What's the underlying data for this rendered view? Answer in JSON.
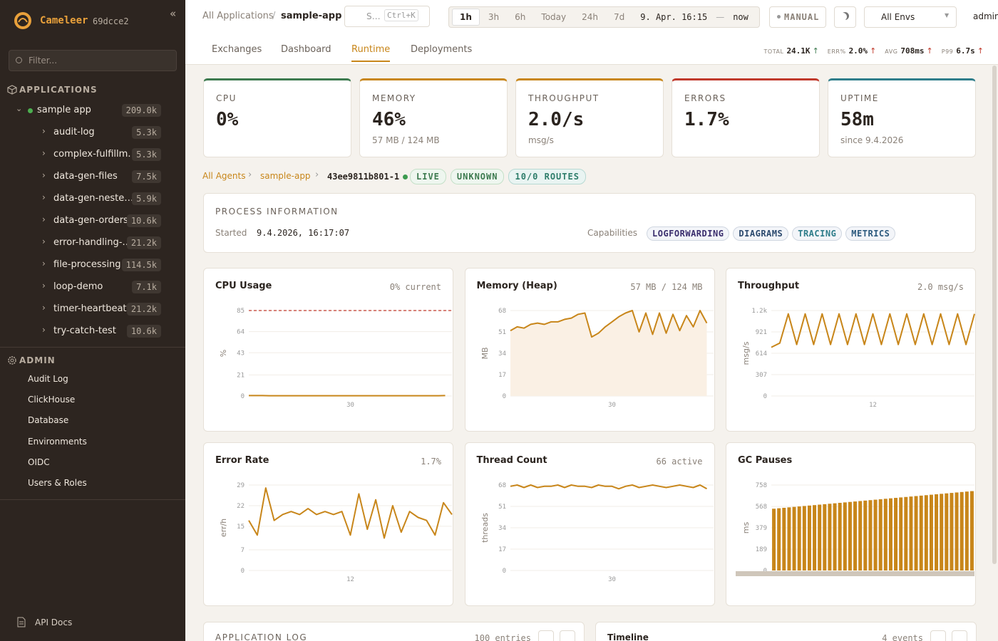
{
  "sidebar": {
    "brand": "Cameleer",
    "version": "69dcce2",
    "filter_placeholder": "Filter...",
    "applications_heading": "APPLICATIONS",
    "app": {
      "name": "sample app",
      "count": "209.0k"
    },
    "routes": [
      {
        "name": "audit-log",
        "count": "5.3k"
      },
      {
        "name": "complex-fulfillm…",
        "count": "5.3k"
      },
      {
        "name": "data-gen-files",
        "count": "7.5k"
      },
      {
        "name": "data-gen-neste…",
        "count": "5.9k"
      },
      {
        "name": "data-gen-orders",
        "count": "10.6k"
      },
      {
        "name": "error-handling-…",
        "count": "21.2k"
      },
      {
        "name": "file-processing",
        "count": "114.5k"
      },
      {
        "name": "loop-demo",
        "count": "7.1k"
      },
      {
        "name": "timer-heartbeat",
        "count": "21.2k"
      },
      {
        "name": "try-catch-test",
        "count": "10.6k"
      }
    ],
    "admin_heading": "ADMIN",
    "admin_links": [
      "Audit Log",
      "ClickHouse",
      "Database",
      "Environments",
      "OIDC",
      "Users & Roles"
    ],
    "api_docs": "API Docs"
  },
  "header": {
    "breadcrumb": [
      "All Applications",
      "sample-app"
    ],
    "search": "S…",
    "search_shortcut": "Ctrl+K",
    "time_ranges": [
      "1h",
      "3h",
      "6h",
      "Today",
      "24h",
      "7d"
    ],
    "active_range": 0,
    "from": "9. Apr. 16:15",
    "separator": "—",
    "to": "now",
    "mode": "MANUAL",
    "env": "All Envs",
    "user": "admin"
  },
  "tabs": {
    "items": [
      "Exchanges",
      "Dashboard",
      "Runtime",
      "Deployments"
    ],
    "active": 2
  },
  "stats": [
    {
      "label": "TOTAL",
      "value": "24.1K"
    },
    {
      "label": "ERR%",
      "value": "2.0%"
    },
    {
      "label": "AVG",
      "value": "708ms"
    },
    {
      "label": "P99",
      "value": "6.7s"
    }
  ],
  "kpis": [
    {
      "label": "CPU",
      "value": "0%",
      "color": "#3d7a4f"
    },
    {
      "label": "MEMORY",
      "value": "46%",
      "sub": "57 MB / 124 MB",
      "color": "#c8861a"
    },
    {
      "label": "THROUGHPUT",
      "value": "2.0/s",
      "sub": "msg/s",
      "color": "#c8861a"
    },
    {
      "label": "ERRORS",
      "value": "1.7%",
      "color": "#c0392b"
    },
    {
      "label": "UPTIME",
      "value": "58m",
      "sub": "since 9.4.2026",
      "color": "#2e7d8a"
    }
  ],
  "agent": {
    "crumbs": [
      "All Agents",
      "sample-app"
    ],
    "id": "43ee9811b801-1",
    "badges": [
      "LIVE",
      "UNKNOWN",
      "10/0 ROUTES"
    ]
  },
  "process": {
    "title": "PROCESS INFORMATION",
    "started_label": "Started",
    "started": "9.4.2026, 16:17:07",
    "capabilities_label": "Capabilities",
    "capabilities": [
      "LOGFORWARDING",
      "DIAGRAMS",
      "TRACING",
      "METRICS"
    ]
  },
  "chart_data": [
    {
      "type": "line",
      "title": "CPU Usage",
      "subtitle": "0% current",
      "ylabel": "%",
      "color": "#c8861a",
      "threshold": 85,
      "x": [
        0,
        2,
        4,
        6,
        8,
        10,
        12,
        14,
        16,
        18,
        20,
        22,
        24,
        26,
        28,
        30,
        32,
        34,
        36,
        38,
        40,
        42,
        44,
        46,
        48,
        50,
        52,
        54,
        56,
        58
      ],
      "values": [
        0.4,
        0.4,
        0.4,
        0.3,
        0.3,
        0.3,
        0.3,
        0.3,
        0.3,
        0.3,
        0.3,
        0.3,
        0.3,
        0.3,
        0.3,
        0.3,
        0.3,
        0.3,
        0.3,
        0.3,
        0.3,
        0.3,
        0.3,
        0.3,
        0.3,
        0.3,
        0.3,
        0.3,
        0.3,
        0.4
      ],
      "xlim": [
        0,
        60
      ],
      "xticks": [
        30
      ],
      "ylim": [
        0,
        85
      ],
      "yticks": [
        0,
        21,
        43,
        64,
        85
      ]
    },
    {
      "type": "area",
      "title": "Memory (Heap)",
      "subtitle": "57 MB / 124 MB",
      "ylabel": "MB",
      "color": "#c8861a",
      "x": [
        0,
        2,
        4,
        6,
        8,
        10,
        12,
        14,
        16,
        18,
        20,
        22,
        24,
        26,
        28,
        30,
        32,
        34,
        36,
        38,
        40,
        42,
        44,
        46,
        48,
        50,
        52,
        54,
        56,
        58
      ],
      "values": [
        52,
        55,
        54,
        57,
        58,
        57,
        59,
        59,
        61,
        62,
        65,
        66,
        47,
        50,
        55,
        59,
        63,
        66,
        68,
        51,
        66,
        49,
        66,
        50,
        65,
        52,
        64,
        55,
        68,
        58
      ],
      "xlim": [
        0,
        60
      ],
      "xticks": [
        30
      ],
      "ylim": [
        0,
        68
      ],
      "yticks": [
        0,
        17,
        34,
        51,
        68
      ]
    },
    {
      "type": "line",
      "title": "Throughput",
      "subtitle": "2.0 msg/s",
      "ylabel": "msg/s",
      "color": "#c8861a",
      "x": [
        0,
        1,
        2,
        3,
        4,
        5,
        6,
        7,
        8,
        9,
        10,
        11,
        12,
        13,
        14,
        15,
        16,
        17,
        18,
        19,
        20,
        21,
        22,
        23,
        24
      ],
      "values": [
        700,
        760,
        1180,
        740,
        1180,
        740,
        1180,
        740,
        1180,
        740,
        1180,
        740,
        1180,
        740,
        1180,
        740,
        1180,
        740,
        1180,
        740,
        1180,
        740,
        1180,
        740,
        1180
      ],
      "xlim": [
        0,
        24
      ],
      "xticks": [
        12
      ],
      "ylim": [
        0,
        1228
      ],
      "yticks": [
        0,
        307,
        614,
        921,
        {
          "value": 1228,
          "label": "1.2k"
        }
      ]
    },
    {
      "type": "line",
      "title": "Error Rate",
      "subtitle": "1.7%",
      "ylabel": "err/h",
      "color": "#c8861a",
      "x": [
        0,
        1,
        2,
        3,
        4,
        5,
        6,
        7,
        8,
        9,
        10,
        11,
        12,
        13,
        14,
        15,
        16,
        17,
        18,
        19,
        20,
        21,
        22,
        23,
        24
      ],
      "values": [
        17,
        12,
        28,
        17,
        19,
        20,
        19,
        21,
        19,
        20,
        19,
        20,
        12,
        26,
        14,
        24,
        11,
        22,
        13,
        20,
        18,
        17,
        12,
        23,
        19
      ],
      "xlim": [
        0,
        24
      ],
      "xticks": [
        12
      ],
      "ylim": [
        0,
        29
      ],
      "yticks": [
        0,
        7,
        15,
        22,
        29
      ]
    },
    {
      "type": "line",
      "title": "Thread Count",
      "subtitle": "66 active",
      "ylabel": "threads",
      "color": "#c8861a",
      "x": [
        0,
        2,
        4,
        6,
        8,
        10,
        12,
        14,
        16,
        18,
        20,
        22,
        24,
        26,
        28,
        30,
        32,
        34,
        36,
        38,
        40,
        42,
        44,
        46,
        48,
        50,
        52,
        54,
        56,
        58
      ],
      "values": [
        67,
        68,
        66,
        68,
        66,
        67,
        67,
        68,
        66,
        68,
        67,
        67,
        66,
        68,
        67,
        67,
        65,
        67,
        68,
        66,
        67,
        68,
        67,
        66,
        67,
        68,
        67,
        66,
        68,
        65
      ],
      "xlim": [
        0,
        60
      ],
      "xticks": [
        30
      ],
      "ylim": [
        0,
        68
      ],
      "yticks": [
        0,
        17,
        34,
        51,
        68
      ]
    },
    {
      "type": "bar",
      "title": "GC Pauses",
      "ylabel": "ms",
      "color": "#c8861a",
      "values": [
        548,
        552,
        556,
        560,
        564,
        568,
        572,
        576,
        580,
        584,
        588,
        592,
        596,
        600,
        604,
        608,
        612,
        616,
        620,
        624,
        628,
        632,
        636,
        640,
        644,
        648,
        652,
        656,
        660,
        664,
        668,
        672,
        676,
        680,
        684,
        688,
        692,
        696,
        700,
        704
      ],
      "ylim": [
        0,
        758
      ],
      "yticks": [
        0,
        189,
        379,
        568,
        758
      ]
    }
  ],
  "panels": [
    {
      "title": "APPLICATION LOG",
      "meta": "100 entries"
    },
    {
      "title": "Timeline",
      "meta": "4 events"
    }
  ]
}
